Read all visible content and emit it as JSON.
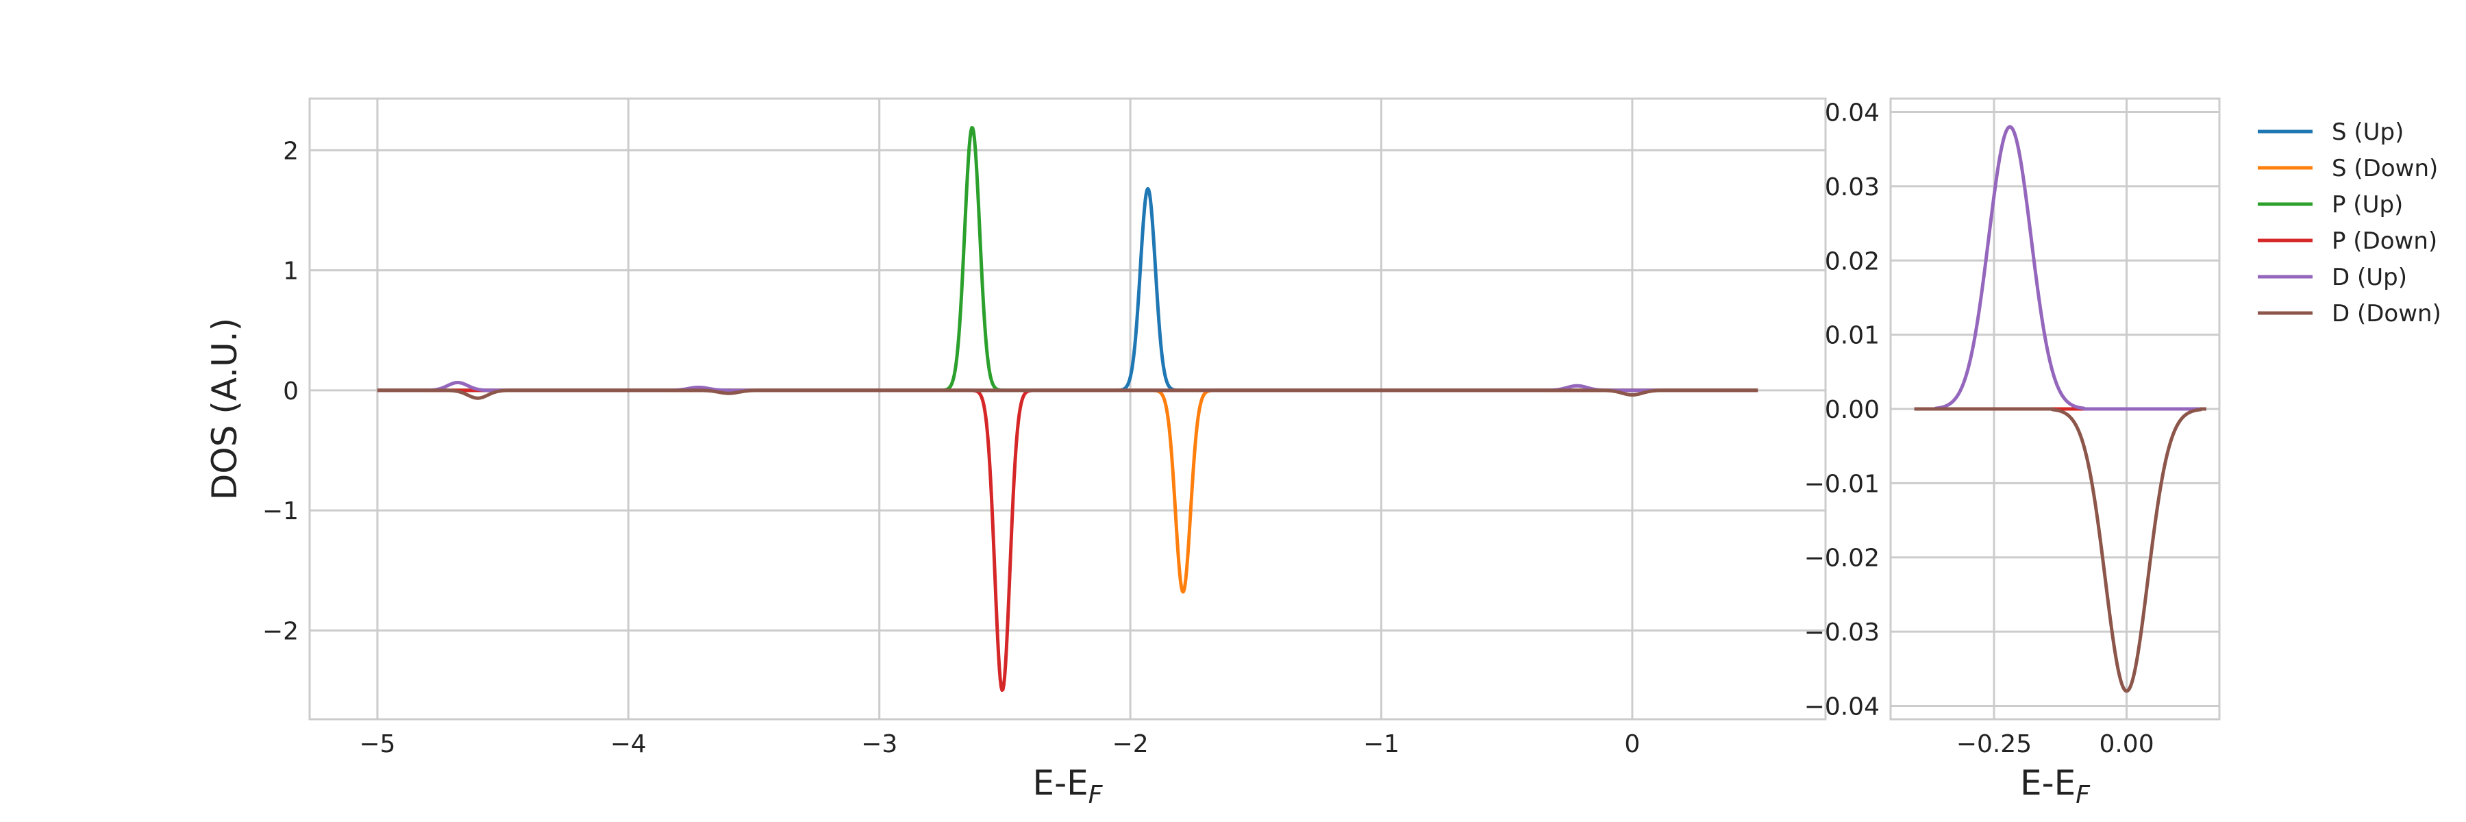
{
  "chart_data": [
    {
      "type": "line",
      "xlabel": "E-E_F",
      "ylabel": "DOS (A.U.)",
      "xlim": [
        -5.27,
        0.77
      ],
      "ylim": [
        -2.74,
        2.43
      ],
      "xticks": [
        -5,
        -4,
        -3,
        -2,
        -1,
        0
      ],
      "xtick_labels": [
        "−5",
        "−4",
        "−3",
        "−2",
        "−1",
        "0"
      ],
      "yticks": [
        -2,
        -1,
        0,
        1,
        2
      ],
      "ytick_labels": [
        "−2",
        "−1",
        "0",
        "1",
        "2"
      ],
      "grid": true,
      "x_range": [
        -5.0,
        0.5
      ],
      "series": [
        {
          "name": "S (Up)",
          "color": "#1f77b4",
          "sign": 1,
          "window": [
            -2.07,
            -1.79
          ],
          "peaks": [
            {
              "center": -1.93,
              "height": 1.68,
              "width": 0.03
            }
          ]
        },
        {
          "name": "S (Down)",
          "color": "#ff7f0e",
          "sign": -1,
          "window": [
            -1.93,
            -1.65
          ],
          "peaks": [
            {
              "center": -1.79,
              "height": 1.68,
              "width": 0.03
            }
          ]
        },
        {
          "name": "P (Up)",
          "color": "#2ca02c",
          "sign": 1,
          "window": [
            -2.77,
            -2.49
          ],
          "peaks": [
            {
              "center": -2.63,
              "height": 2.19,
              "width": 0.03
            }
          ]
        },
        {
          "name": "P (Down)",
          "color": "#d62728",
          "sign": -1,
          "window": [
            -2.65,
            -2.37
          ],
          "peaks": [
            {
              "center": -2.51,
              "height": 2.5,
              "width": 0.03
            }
          ]
        },
        {
          "name": "D (Up)",
          "color": "#9467bd",
          "sign": 1,
          "window": null,
          "peaks": [
            {
              "center": -4.68,
              "height": 0.065,
              "width": 0.04
            },
            {
              "center": -3.72,
              "height": 0.025,
              "width": 0.04
            },
            {
              "center": -0.22,
              "height": 0.038,
              "width": 0.04
            }
          ]
        },
        {
          "name": "D (Down)",
          "color": "#8c564b",
          "sign": -1,
          "window": null,
          "peaks": [
            {
              "center": -4.6,
              "height": 0.065,
              "width": 0.04
            },
            {
              "center": -3.6,
              "height": 0.025,
              "width": 0.04
            },
            {
              "center": 0.0,
              "height": 0.038,
              "width": 0.04
            }
          ]
        }
      ]
    },
    {
      "type": "line",
      "xlabel": "E-E_F",
      "ylabel": "",
      "xlim": [
        -0.445,
        0.175
      ],
      "ylim": [
        -0.0418,
        0.0418
      ],
      "xticks": [
        -0.25,
        0.0
      ],
      "xtick_labels": [
        "−0.25",
        "0.00"
      ],
      "yticks": [
        -0.04,
        -0.03,
        -0.02,
        -0.01,
        0.0,
        0.01,
        0.02,
        0.03,
        0.04
      ],
      "ytick_labels": [
        "−0.04",
        "−0.03",
        "−0.02",
        "−0.01",
        "0.00",
        "0.01",
        "0.02",
        "0.03",
        "0.04"
      ],
      "grid": true,
      "x_range": [
        -0.4,
        0.15
      ],
      "series": [
        {
          "name": "S (Up)",
          "color": "#1f77b4",
          "sign": 1,
          "window": null,
          "peaks": []
        },
        {
          "name": "S (Down)",
          "color": "#ff7f0e",
          "sign": -1,
          "window": null,
          "peaks": []
        },
        {
          "name": "P (Up)",
          "color": "#2ca02c",
          "sign": 1,
          "window": null,
          "peaks": []
        },
        {
          "name": "P (Down)",
          "color": "#d62728",
          "sign": -1,
          "window": null,
          "peaks": []
        },
        {
          "name": "D (Up)",
          "color": "#9467bd",
          "sign": 1,
          "window": [
            -0.36,
            -0.08
          ],
          "peaks": [
            {
              "center": -0.22,
              "height": 0.038,
              "width": 0.04
            }
          ]
        },
        {
          "name": "D (Down)",
          "color": "#8c564b",
          "sign": -1,
          "window": [
            -0.14,
            0.14
          ],
          "peaks": [
            {
              "center": 0.0,
              "height": 0.038,
              "width": 0.04
            }
          ]
        }
      ]
    }
  ],
  "legend": {
    "position": "right",
    "entries": [
      {
        "label": "S (Up)",
        "color": "#1f77b4"
      },
      {
        "label": "S (Down)",
        "color": "#ff7f0e"
      },
      {
        "label": "P (Up)",
        "color": "#2ca02c"
      },
      {
        "label": "P (Down)",
        "color": "#d62728"
      },
      {
        "label": "D (Up)",
        "color": "#9467bd"
      },
      {
        "label": "D (Down)",
        "color": "#8c564b"
      }
    ]
  }
}
